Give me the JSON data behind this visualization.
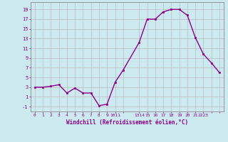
{
  "x": [
    0,
    1,
    2,
    3,
    4,
    5,
    6,
    7,
    8,
    9,
    10,
    11,
    13,
    14,
    15,
    16,
    17,
    18,
    19,
    20,
    21,
    22,
    23
  ],
  "y": [
    3,
    3,
    3.2,
    3.5,
    1.8,
    2.8,
    1.8,
    1.8,
    -0.8,
    -0.5,
    4.0,
    6.5,
    12.2,
    17.0,
    17.0,
    18.5,
    19.0,
    19.0,
    17.8,
    13.2,
    9.8,
    8.0,
    6.0
  ],
  "line_color": "#8B008B",
  "marker_color": "#8B008B",
  "bg_color": "#cce9f0",
  "grid_color": "#aaaaaa",
  "xlabel": "Windchill (Refroidissement éolien,°C)",
  "xlabel_color": "#8B008B",
  "yticks": [
    -1,
    1,
    3,
    5,
    7,
    9,
    11,
    13,
    15,
    17,
    19
  ],
  "ylim": [
    -2.0,
    20.5
  ],
  "xlim": [
    -0.5,
    23.5
  ],
  "xtick_positions": [
    0,
    1,
    2,
    3,
    4,
    5,
    6,
    7,
    8,
    9,
    10,
    11,
    13,
    14,
    15,
    16,
    17,
    18,
    19,
    20,
    21,
    22,
    23
  ],
  "xtick_labels": [
    "0",
    "1",
    "2",
    "3",
    "4",
    "5",
    "6",
    "7",
    "8",
    "9",
    "1011",
    "",
    "1314",
    "15",
    "16",
    "17",
    "18",
    "19",
    "20",
    "21",
    "2223",
    "",
    ""
  ]
}
